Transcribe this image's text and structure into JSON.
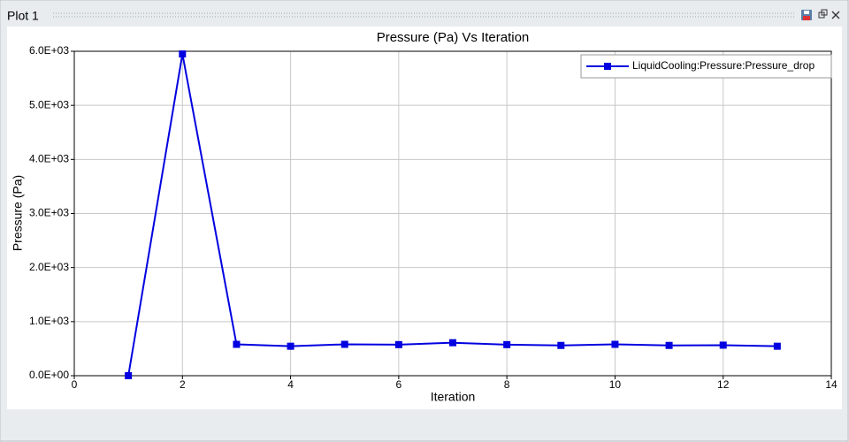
{
  "window": {
    "title": "Plot 1"
  },
  "chart_data": {
    "type": "line",
    "title": "Pressure (Pa) Vs Iteration",
    "x_label": "Iteration",
    "y_label": "Pressure (Pa)",
    "x": [
      1,
      2,
      3,
      4,
      5,
      6,
      7,
      8,
      9,
      10,
      11,
      12,
      13
    ],
    "series": [
      {
        "name": "LiquidCooling:Pressure:Pressure_drop",
        "color": "#0000e0",
        "values": [
          0,
          5950,
          580,
          545,
          580,
          575,
          610,
          575,
          560,
          580,
          560,
          565,
          545
        ]
      }
    ],
    "xlim": [
      0,
      14
    ],
    "xticks": [
      0,
      2,
      4,
      6,
      8,
      10,
      12,
      14
    ],
    "ylim": [
      0,
      6000
    ],
    "yticks": [
      {
        "value": 0,
        "label": "0.0E+00"
      },
      {
        "value": 1000,
        "label": "1.0E+03"
      },
      {
        "value": 2000,
        "label": "2.0E+03"
      },
      {
        "value": 3000,
        "label": "3.0E+03"
      },
      {
        "value": 4000,
        "label": "4.0E+03"
      },
      {
        "value": 5000,
        "label": "5.0E+03"
      },
      {
        "value": 6000,
        "label": "6.0E+03"
      }
    ],
    "grid": true,
    "legend": "upper-right"
  }
}
